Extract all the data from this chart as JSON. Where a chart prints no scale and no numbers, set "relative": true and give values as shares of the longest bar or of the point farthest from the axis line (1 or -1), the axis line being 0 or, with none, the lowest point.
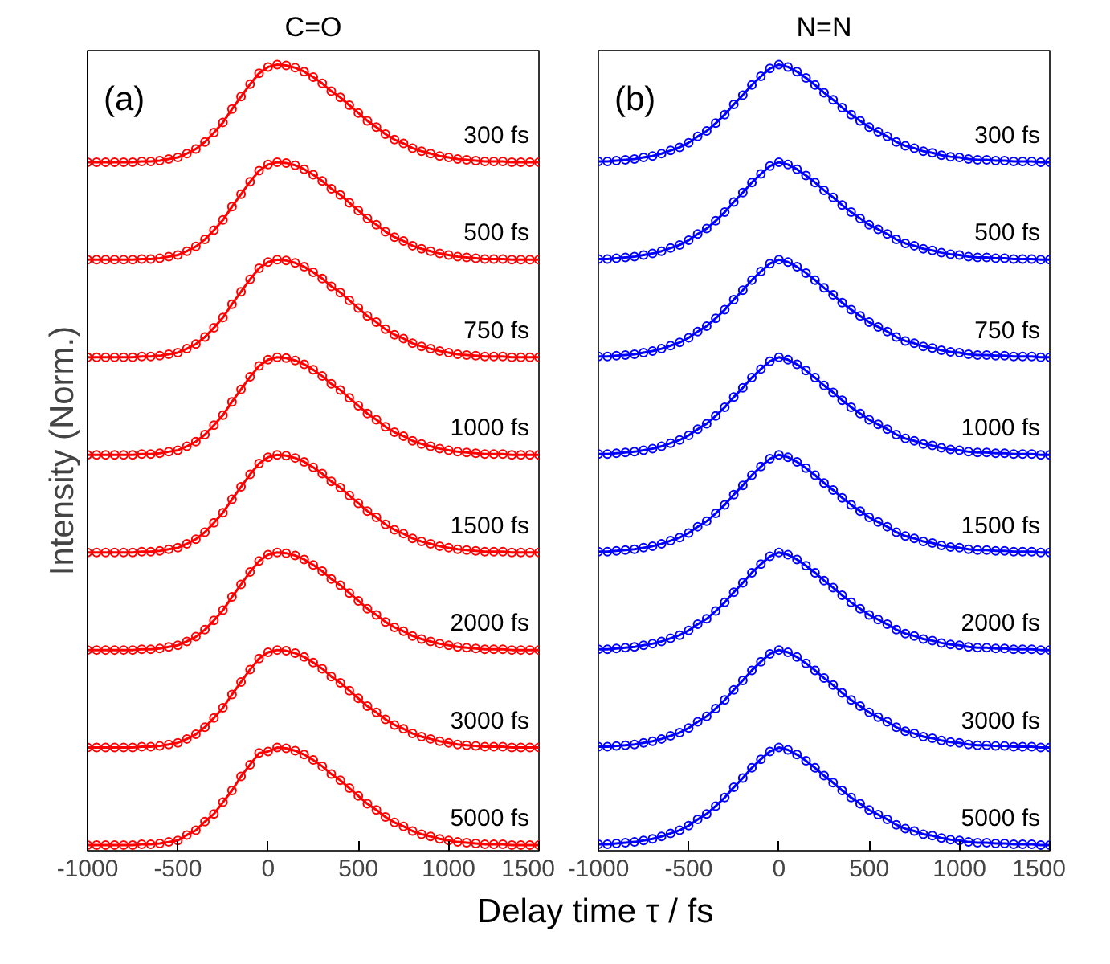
{
  "chart_data": [
    {
      "type": "line",
      "title": "C=O",
      "annotations": [
        "(a)"
      ],
      "xlabel": "Delay time τ / fs",
      "ylabel": "Intensity (Norm.)",
      "relative": true,
      "tick_labels": "x",
      "marker": "circle",
      "line_style": "solid",
      "xlim": [
        -1000,
        1500
      ],
      "xticks": [
        -1000,
        -500,
        0,
        500,
        1000,
        1500
      ],
      "x": [
        -1000,
        -950,
        -900,
        -850,
        -800,
        -750,
        -700,
        -650,
        -600,
        -550,
        -500,
        -450,
        -400,
        -350,
        -300,
        -250,
        -200,
        -150,
        -100,
        -50,
        0,
        50,
        100,
        150,
        200,
        250,
        300,
        350,
        400,
        450,
        500,
        550,
        600,
        650,
        700,
        750,
        800,
        850,
        900,
        950,
        1000,
        1050,
        1100,
        1150,
        1200,
        1250,
        1300,
        1350,
        1400,
        1450,
        1500
      ],
      "series": [
        {
          "name": "300 fs",
          "color": "#ff0000",
          "values": [
            0.875,
            0.875,
            0.875,
            0.875,
            0.875,
            0.875,
            0.876,
            0.876,
            0.877,
            0.879,
            0.881,
            0.886,
            0.892,
            0.901,
            0.913,
            0.926,
            0.943,
            0.959,
            0.975,
            0.989,
            0.997,
            1,
            0.999,
            0.996,
            0.991,
            0.984,
            0.976,
            0.966,
            0.958,
            0.948,
            0.938,
            0.928,
            0.92,
            0.911,
            0.904,
            0.899,
            0.893,
            0.889,
            0.886,
            0.883,
            0.881,
            0.879,
            0.878,
            0.877,
            0.876,
            0.876,
            0.876,
            0.875,
            0.875,
            0.875,
            0.875
          ]
        },
        {
          "name": "500 fs",
          "color": "#ff0000",
          "values": [
            0.75,
            0.75,
            0.75,
            0.75,
            0.75,
            0.75,
            0.751,
            0.751,
            0.752,
            0.754,
            0.756,
            0.761,
            0.767,
            0.776,
            0.788,
            0.801,
            0.818,
            0.834,
            0.85,
            0.864,
            0.872,
            0.875,
            0.874,
            0.871,
            0.866,
            0.859,
            0.851,
            0.841,
            0.833,
            0.823,
            0.813,
            0.803,
            0.795,
            0.786,
            0.779,
            0.774,
            0.768,
            0.764,
            0.761,
            0.758,
            0.756,
            0.754,
            0.753,
            0.752,
            0.751,
            0.751,
            0.751,
            0.75,
            0.75,
            0.75,
            0.75
          ]
        },
        {
          "name": "750 fs",
          "color": "#ff0000",
          "values": [
            0.625,
            0.625,
            0.625,
            0.625,
            0.625,
            0.625,
            0.626,
            0.626,
            0.627,
            0.629,
            0.631,
            0.636,
            0.642,
            0.651,
            0.663,
            0.676,
            0.693,
            0.709,
            0.725,
            0.739,
            0.747,
            0.75,
            0.749,
            0.746,
            0.741,
            0.734,
            0.726,
            0.716,
            0.708,
            0.698,
            0.688,
            0.678,
            0.67,
            0.661,
            0.654,
            0.649,
            0.643,
            0.639,
            0.636,
            0.633,
            0.631,
            0.629,
            0.628,
            0.627,
            0.626,
            0.626,
            0.626,
            0.625,
            0.625,
            0.625,
            0.625
          ]
        },
        {
          "name": "1000 fs",
          "color": "#ff0000",
          "values": [
            0.5,
            0.5,
            0.5,
            0.5,
            0.5,
            0.5,
            0.501,
            0.501,
            0.502,
            0.504,
            0.506,
            0.511,
            0.517,
            0.526,
            0.538,
            0.551,
            0.568,
            0.584,
            0.6,
            0.614,
            0.622,
            0.625,
            0.624,
            0.621,
            0.616,
            0.609,
            0.601,
            0.591,
            0.583,
            0.573,
            0.563,
            0.553,
            0.545,
            0.536,
            0.529,
            0.524,
            0.518,
            0.514,
            0.511,
            0.508,
            0.506,
            0.504,
            0.503,
            0.502,
            0.501,
            0.501,
            0.501,
            0.5,
            0.5,
            0.5,
            0.5
          ]
        },
        {
          "name": "1500 fs",
          "color": "#ff0000",
          "values": [
            0.375,
            0.375,
            0.375,
            0.375,
            0.375,
            0.375,
            0.376,
            0.376,
            0.377,
            0.379,
            0.381,
            0.386,
            0.392,
            0.401,
            0.413,
            0.426,
            0.443,
            0.459,
            0.475,
            0.489,
            0.497,
            0.5,
            0.499,
            0.496,
            0.491,
            0.484,
            0.476,
            0.466,
            0.458,
            0.448,
            0.438,
            0.428,
            0.42,
            0.411,
            0.404,
            0.399,
            0.393,
            0.389,
            0.386,
            0.383,
            0.381,
            0.379,
            0.378,
            0.377,
            0.376,
            0.376,
            0.376,
            0.375,
            0.375,
            0.375,
            0.375
          ]
        },
        {
          "name": "2000 fs",
          "color": "#ff0000",
          "values": [
            0.25,
            0.25,
            0.25,
            0.25,
            0.25,
            0.25,
            0.251,
            0.251,
            0.252,
            0.254,
            0.256,
            0.261,
            0.267,
            0.276,
            0.288,
            0.301,
            0.318,
            0.334,
            0.35,
            0.364,
            0.372,
            0.375,
            0.374,
            0.371,
            0.366,
            0.359,
            0.351,
            0.341,
            0.333,
            0.323,
            0.313,
            0.303,
            0.295,
            0.286,
            0.279,
            0.274,
            0.268,
            0.264,
            0.261,
            0.258,
            0.256,
            0.254,
            0.253,
            0.252,
            0.251,
            0.251,
            0.251,
            0.25,
            0.25,
            0.25,
            0.25
          ]
        },
        {
          "name": "3000 fs",
          "color": "#ff0000",
          "values": [
            0.125,
            0.125,
            0.125,
            0.125,
            0.125,
            0.125,
            0.126,
            0.126,
            0.127,
            0.129,
            0.131,
            0.136,
            0.142,
            0.151,
            0.163,
            0.176,
            0.193,
            0.209,
            0.225,
            0.239,
            0.247,
            0.25,
            0.249,
            0.246,
            0.241,
            0.234,
            0.226,
            0.216,
            0.208,
            0.198,
            0.188,
            0.178,
            0.17,
            0.161,
            0.154,
            0.149,
            0.143,
            0.139,
            0.136,
            0.133,
            0.131,
            0.129,
            0.128,
            0.127,
            0.126,
            0.126,
            0.126,
            0.125,
            0.125,
            0.125,
            0.125
          ]
        },
        {
          "name": "5000 fs",
          "color": "#ff0000",
          "values": [
            0,
            0,
            0,
            0,
            0,
            0,
            0.001,
            0.001,
            0.002,
            0.004,
            0.006,
            0.013,
            0.019,
            0.03,
            0.04,
            0.055,
            0.07,
            0.088,
            0.103,
            0.118,
            0.12,
            0.125,
            0.124,
            0.121,
            0.116,
            0.109,
            0.101,
            0.091,
            0.083,
            0.073,
            0.063,
            0.053,
            0.045,
            0.036,
            0.029,
            0.024,
            0.018,
            0.014,
            0.011,
            0.008,
            0.006,
            0.004,
            0.003,
            0.002,
            0.001,
            0.001,
            0.001,
            0,
            0,
            0,
            0
          ]
        }
      ]
    },
    {
      "type": "line",
      "title": "N=N",
      "annotations": [
        "(b)"
      ],
      "relative": true,
      "tick_labels": "x",
      "marker": "circle",
      "line_style": "solid",
      "xlim": [
        -1000,
        1500
      ],
      "xticks": [
        -1000,
        -500,
        0,
        500,
        1000,
        1500
      ],
      "x": [
        -1000,
        -950,
        -900,
        -850,
        -800,
        -750,
        -700,
        -650,
        -600,
        -550,
        -500,
        -450,
        -400,
        -350,
        -300,
        -250,
        -200,
        -150,
        -100,
        -50,
        0,
        50,
        100,
        150,
        200,
        250,
        300,
        350,
        400,
        450,
        500,
        550,
        600,
        650,
        700,
        750,
        800,
        850,
        900,
        950,
        1000,
        1050,
        1100,
        1150,
        1200,
        1250,
        1300,
        1350,
        1400,
        1450,
        1500
      ],
      "series": [
        {
          "name": "300 fs",
          "color": "#0000ff",
          "values": [
            0.876,
            0.876,
            0.877,
            0.878,
            0.879,
            0.881,
            0.883,
            0.886,
            0.89,
            0.894,
            0.9,
            0.908,
            0.915,
            0.925,
            0.936,
            0.949,
            0.961,
            0.974,
            0.985,
            0.995,
            1,
            0.997,
            0.991,
            0.983,
            0.974,
            0.964,
            0.955,
            0.945,
            0.936,
            0.928,
            0.92,
            0.914,
            0.908,
            0.901,
            0.896,
            0.893,
            0.889,
            0.887,
            0.884,
            0.882,
            0.881,
            0.879,
            0.878,
            0.878,
            0.877,
            0.877,
            0.876,
            0.876,
            0.876,
            0.875,
            0.875
          ]
        },
        {
          "name": "500 fs",
          "color": "#0000ff",
          "values": [
            0.751,
            0.751,
            0.752,
            0.753,
            0.754,
            0.756,
            0.758,
            0.761,
            0.765,
            0.769,
            0.775,
            0.783,
            0.79,
            0.8,
            0.811,
            0.824,
            0.836,
            0.849,
            0.86,
            0.87,
            0.875,
            0.872,
            0.866,
            0.858,
            0.849,
            0.839,
            0.83,
            0.82,
            0.811,
            0.803,
            0.795,
            0.789,
            0.783,
            0.776,
            0.771,
            0.768,
            0.764,
            0.762,
            0.759,
            0.757,
            0.756,
            0.754,
            0.753,
            0.753,
            0.752,
            0.752,
            0.751,
            0.751,
            0.751,
            0.75,
            0.75
          ]
        },
        {
          "name": "750 fs",
          "color": "#0000ff",
          "values": [
            0.626,
            0.626,
            0.627,
            0.628,
            0.629,
            0.631,
            0.633,
            0.636,
            0.64,
            0.644,
            0.65,
            0.658,
            0.665,
            0.675,
            0.686,
            0.699,
            0.711,
            0.724,
            0.735,
            0.745,
            0.75,
            0.747,
            0.741,
            0.733,
            0.724,
            0.714,
            0.705,
            0.695,
            0.686,
            0.678,
            0.67,
            0.664,
            0.658,
            0.651,
            0.646,
            0.643,
            0.639,
            0.637,
            0.634,
            0.632,
            0.631,
            0.629,
            0.628,
            0.628,
            0.627,
            0.627,
            0.626,
            0.626,
            0.626,
            0.625,
            0.625
          ]
        },
        {
          "name": "1000 fs",
          "color": "#0000ff",
          "values": [
            0.501,
            0.501,
            0.502,
            0.503,
            0.504,
            0.506,
            0.508,
            0.511,
            0.515,
            0.519,
            0.525,
            0.533,
            0.54,
            0.55,
            0.561,
            0.574,
            0.586,
            0.599,
            0.61,
            0.62,
            0.625,
            0.622,
            0.616,
            0.608,
            0.599,
            0.589,
            0.58,
            0.57,
            0.561,
            0.553,
            0.545,
            0.539,
            0.533,
            0.526,
            0.521,
            0.518,
            0.514,
            0.512,
            0.509,
            0.507,
            0.506,
            0.504,
            0.503,
            0.503,
            0.502,
            0.502,
            0.501,
            0.501,
            0.501,
            0.5,
            0.5
          ]
        },
        {
          "name": "1500 fs",
          "color": "#0000ff",
          "values": [
            0.376,
            0.376,
            0.377,
            0.378,
            0.379,
            0.381,
            0.383,
            0.386,
            0.39,
            0.394,
            0.4,
            0.408,
            0.415,
            0.425,
            0.436,
            0.449,
            0.461,
            0.474,
            0.485,
            0.495,
            0.5,
            0.497,
            0.491,
            0.483,
            0.474,
            0.464,
            0.455,
            0.445,
            0.436,
            0.428,
            0.42,
            0.414,
            0.408,
            0.401,
            0.396,
            0.393,
            0.389,
            0.387,
            0.384,
            0.382,
            0.381,
            0.379,
            0.378,
            0.378,
            0.377,
            0.377,
            0.376,
            0.376,
            0.376,
            0.375,
            0.375
          ]
        },
        {
          "name": "2000 fs",
          "color": "#0000ff",
          "values": [
            0.251,
            0.251,
            0.252,
            0.253,
            0.254,
            0.256,
            0.258,
            0.261,
            0.265,
            0.269,
            0.275,
            0.283,
            0.29,
            0.3,
            0.311,
            0.324,
            0.336,
            0.349,
            0.36,
            0.37,
            0.375,
            0.372,
            0.366,
            0.358,
            0.349,
            0.339,
            0.33,
            0.32,
            0.311,
            0.303,
            0.295,
            0.289,
            0.283,
            0.276,
            0.271,
            0.268,
            0.264,
            0.262,
            0.259,
            0.257,
            0.256,
            0.254,
            0.253,
            0.253,
            0.252,
            0.252,
            0.251,
            0.251,
            0.251,
            0.25,
            0.25
          ]
        },
        {
          "name": "3000 fs",
          "color": "#0000ff",
          "values": [
            0.126,
            0.126,
            0.127,
            0.128,
            0.129,
            0.131,
            0.133,
            0.136,
            0.14,
            0.144,
            0.15,
            0.158,
            0.165,
            0.175,
            0.186,
            0.199,
            0.211,
            0.224,
            0.235,
            0.245,
            0.25,
            0.247,
            0.241,
            0.233,
            0.224,
            0.214,
            0.205,
            0.195,
            0.186,
            0.178,
            0.17,
            0.164,
            0.158,
            0.151,
            0.146,
            0.143,
            0.139,
            0.137,
            0.134,
            0.132,
            0.131,
            0.129,
            0.128,
            0.128,
            0.127,
            0.127,
            0.126,
            0.126,
            0.126,
            0.125,
            0.125
          ]
        },
        {
          "name": "5000 fs",
          "color": "#0000ff",
          "values": [
            0.001,
            0.001,
            0.002,
            0.003,
            0.004,
            0.006,
            0.008,
            0.011,
            0.015,
            0.019,
            0.025,
            0.033,
            0.04,
            0.05,
            0.061,
            0.074,
            0.086,
            0.099,
            0.11,
            0.12,
            0.125,
            0.122,
            0.116,
            0.108,
            0.099,
            0.089,
            0.08,
            0.07,
            0.061,
            0.053,
            0.045,
            0.039,
            0.033,
            0.026,
            0.021,
            0.018,
            0.014,
            0.012,
            0.009,
            0.007,
            0.006,
            0.004,
            0.003,
            0.003,
            0.002,
            0.002,
            0.001,
            0.001,
            0.001,
            0,
            0
          ]
        }
      ]
    }
  ]
}
